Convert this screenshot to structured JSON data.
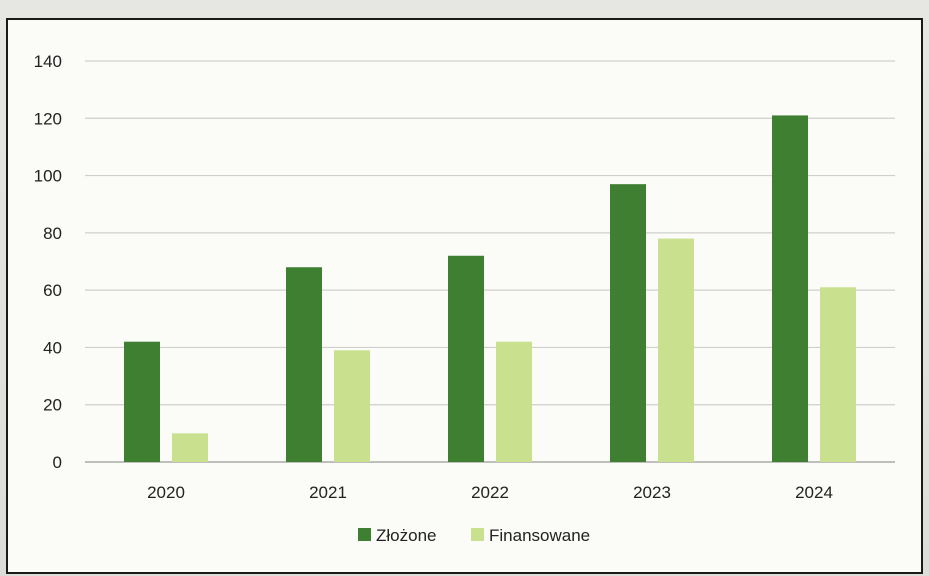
{
  "chart_data": {
    "type": "bar",
    "categories": [
      "2020",
      "2021",
      "2022",
      "2023",
      "2024"
    ],
    "series": [
      {
        "name": "Złożone",
        "values": [
          42,
          68,
          72,
          97,
          121
        ],
        "color": "#3f7f32"
      },
      {
        "name": "Finansowane",
        "values": [
          10,
          39,
          42,
          78,
          61
        ],
        "color": "#c9e08f"
      }
    ],
    "ylim": [
      0,
      140
    ],
    "yticks": [
      "0",
      "20",
      "40",
      "60",
      "80",
      "100",
      "120",
      "140"
    ],
    "grid": true,
    "legend_position": "bottom",
    "title": "",
    "xlabel": "",
    "ylabel": ""
  }
}
